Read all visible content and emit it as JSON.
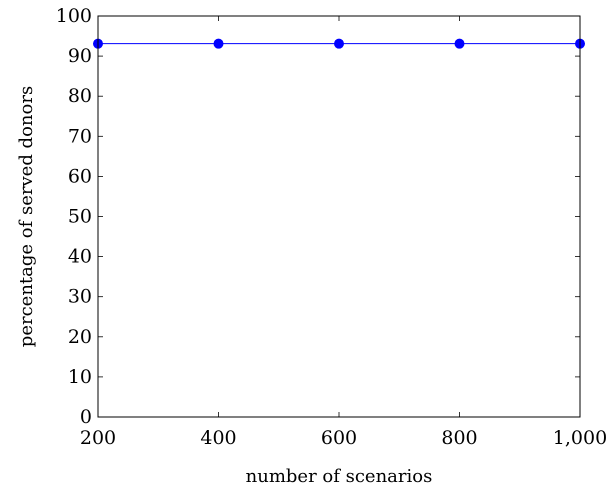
{
  "chart_data": {
    "type": "line",
    "xlabel": "number of scenarios",
    "ylabel": "percentage of served donors",
    "xlim": [
      200,
      1000
    ],
    "ylim": [
      0,
      100
    ],
    "x_ticks": [
      200,
      400,
      600,
      800,
      1000
    ],
    "x_tick_labels": [
      "200",
      "400",
      "600",
      "800",
      "1,000"
    ],
    "y_ticks": [
      0,
      10,
      20,
      30,
      40,
      50,
      60,
      70,
      80,
      90,
      100
    ],
    "y_tick_labels": [
      "0",
      "10",
      "20",
      "30",
      "40",
      "50",
      "60",
      "70",
      "80",
      "90",
      "100"
    ],
    "grid": false,
    "series": [
      {
        "color": "#0000ff",
        "marker": "circle",
        "x": [
          200,
          400,
          600,
          800,
          1000
        ],
        "y": [
          93.1,
          93.1,
          93.1,
          93.1,
          93.1
        ]
      }
    ]
  }
}
